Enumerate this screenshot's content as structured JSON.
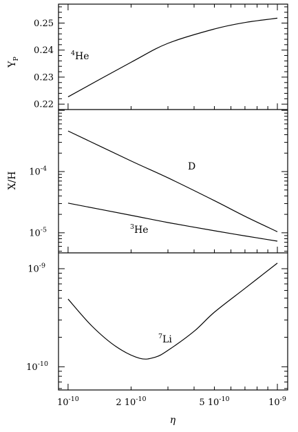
{
  "chart_data": [
    {
      "type": "line",
      "panel": "top",
      "ylabel": "Y",
      "ylabel_sub": "P",
      "xscale": "log",
      "ylim": [
        0.218,
        0.257
      ],
      "yticks": [
        "0.22",
        "0.23",
        "0.24",
        "0.25"
      ],
      "series": [
        {
          "annotation": {
            "sup": "4",
            "base": "He"
          },
          "x": [
            1e-10,
            2e-10,
            3e-10,
            5e-10,
            7e-10,
            1e-09
          ],
          "y": [
            0.2227,
            0.2355,
            0.2425,
            0.2478,
            0.2502,
            0.2518
          ]
        }
      ]
    },
    {
      "type": "line",
      "panel": "middle",
      "ylabel": "X/H",
      "xscale": "log",
      "yscale": "log",
      "ylim": [
        4.7e-06,
        0.00103
      ],
      "yticks": [
        {
          "base": "10",
          "exp": "-4"
        },
        {
          "base": "10",
          "exp": "-5"
        }
      ],
      "series": [
        {
          "annotation": {
            "sup": "",
            "base": "D"
          },
          "x": [
            1e-10,
            2e-10,
            3e-10,
            5e-10,
            7e-10,
            1e-09
          ],
          "y": [
            0.00046,
            0.000149,
            7.9e-05,
            3.35e-05,
            1.86e-05,
            1.04e-05
          ]
        },
        {
          "annotation": {
            "sup": "3",
            "base": "He"
          },
          "x": [
            1e-10,
            2e-10,
            3e-10,
            5e-10,
            7e-10,
            1e-09
          ],
          "y": [
            3.05e-05,
            1.93e-05,
            1.47e-05,
            1.08e-05,
            8.9e-06,
            7.3e-06
          ]
        }
      ]
    },
    {
      "type": "line",
      "panel": "bottom",
      "xlabel": "η",
      "xscale": "log",
      "yscale": "log",
      "ylim": [
        5.8e-11,
        1.45e-09
      ],
      "yticks": [
        {
          "base": "10",
          "exp": "-9"
        },
        {
          "base": "10",
          "exp": "-10"
        }
      ],
      "xticks": [
        {
          "pre": "",
          "base": "10",
          "exp": "-10"
        },
        {
          "pre": "2 ",
          "base": "10",
          "exp": "-10"
        },
        {
          "pre": "5 ",
          "base": "10",
          "exp": "-10"
        },
        {
          "pre": "",
          "base": "10",
          "exp": "-9"
        }
      ],
      "series": [
        {
          "annotation": {
            "sup": "7",
            "base": "Li"
          },
          "x": [
            1e-10,
            1.3e-10,
            1.7e-10,
            2.2e-10,
            2.6e-10,
            3e-10,
            4e-10,
            5e-10,
            7e-10,
            1e-09
          ],
          "y": [
            4.9e-10,
            2.6e-10,
            1.6e-10,
            1.22e-10,
            1.25e-10,
            1.47e-10,
            2.3e-10,
            3.6e-10,
            6.3e-10,
            1.14e-09
          ]
        }
      ]
    }
  ]
}
